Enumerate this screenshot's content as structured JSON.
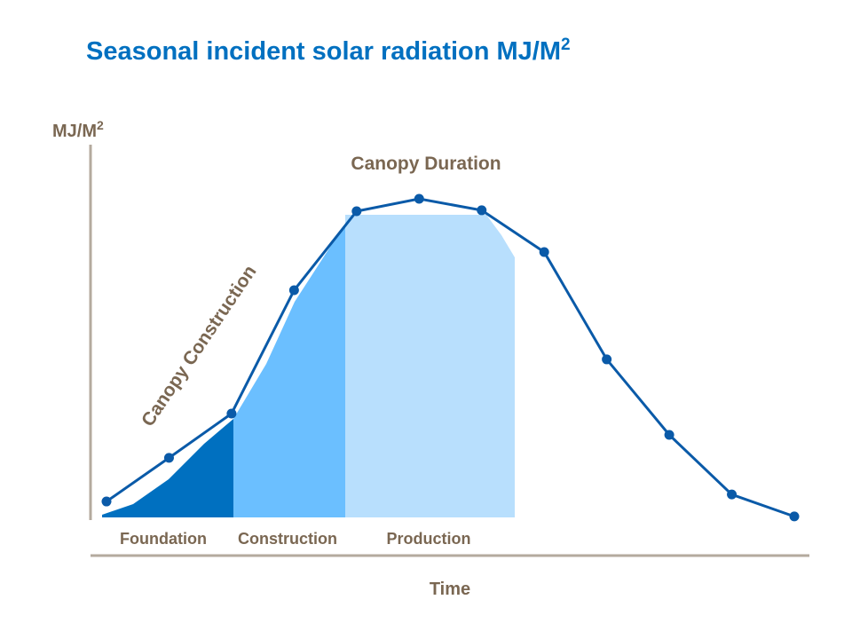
{
  "chart_data": {
    "type": "line",
    "title": "Seasonal incident solar radiation MJ/M",
    "title_superscript": "2",
    "ylabel": "MJ/M",
    "ylabel_superscript": "2",
    "xlabel": "Time",
    "x": [
      1,
      2,
      3,
      4,
      5,
      6,
      7,
      8,
      9,
      10,
      11,
      12
    ],
    "values": [
      5,
      18.7,
      32.6,
      71.3,
      96.1,
      100,
      96.4,
      83.3,
      49.6,
      25.9,
      7.2,
      0.3
    ],
    "ylim": [
      0,
      100
    ],
    "grid": false,
    "line_color": "#0a5aa8",
    "annotations": {
      "canopy_construction": "Canopy Construction",
      "canopy_duration": "Canopy Duration"
    },
    "stages": [
      {
        "label": "Foundation",
        "color": "#0070c0"
      },
      {
        "label": "Construction",
        "color": "#6bbfff"
      },
      {
        "label": "Production",
        "color": "#b8dffd"
      }
    ],
    "axis_color": "#b4aa9e"
  }
}
